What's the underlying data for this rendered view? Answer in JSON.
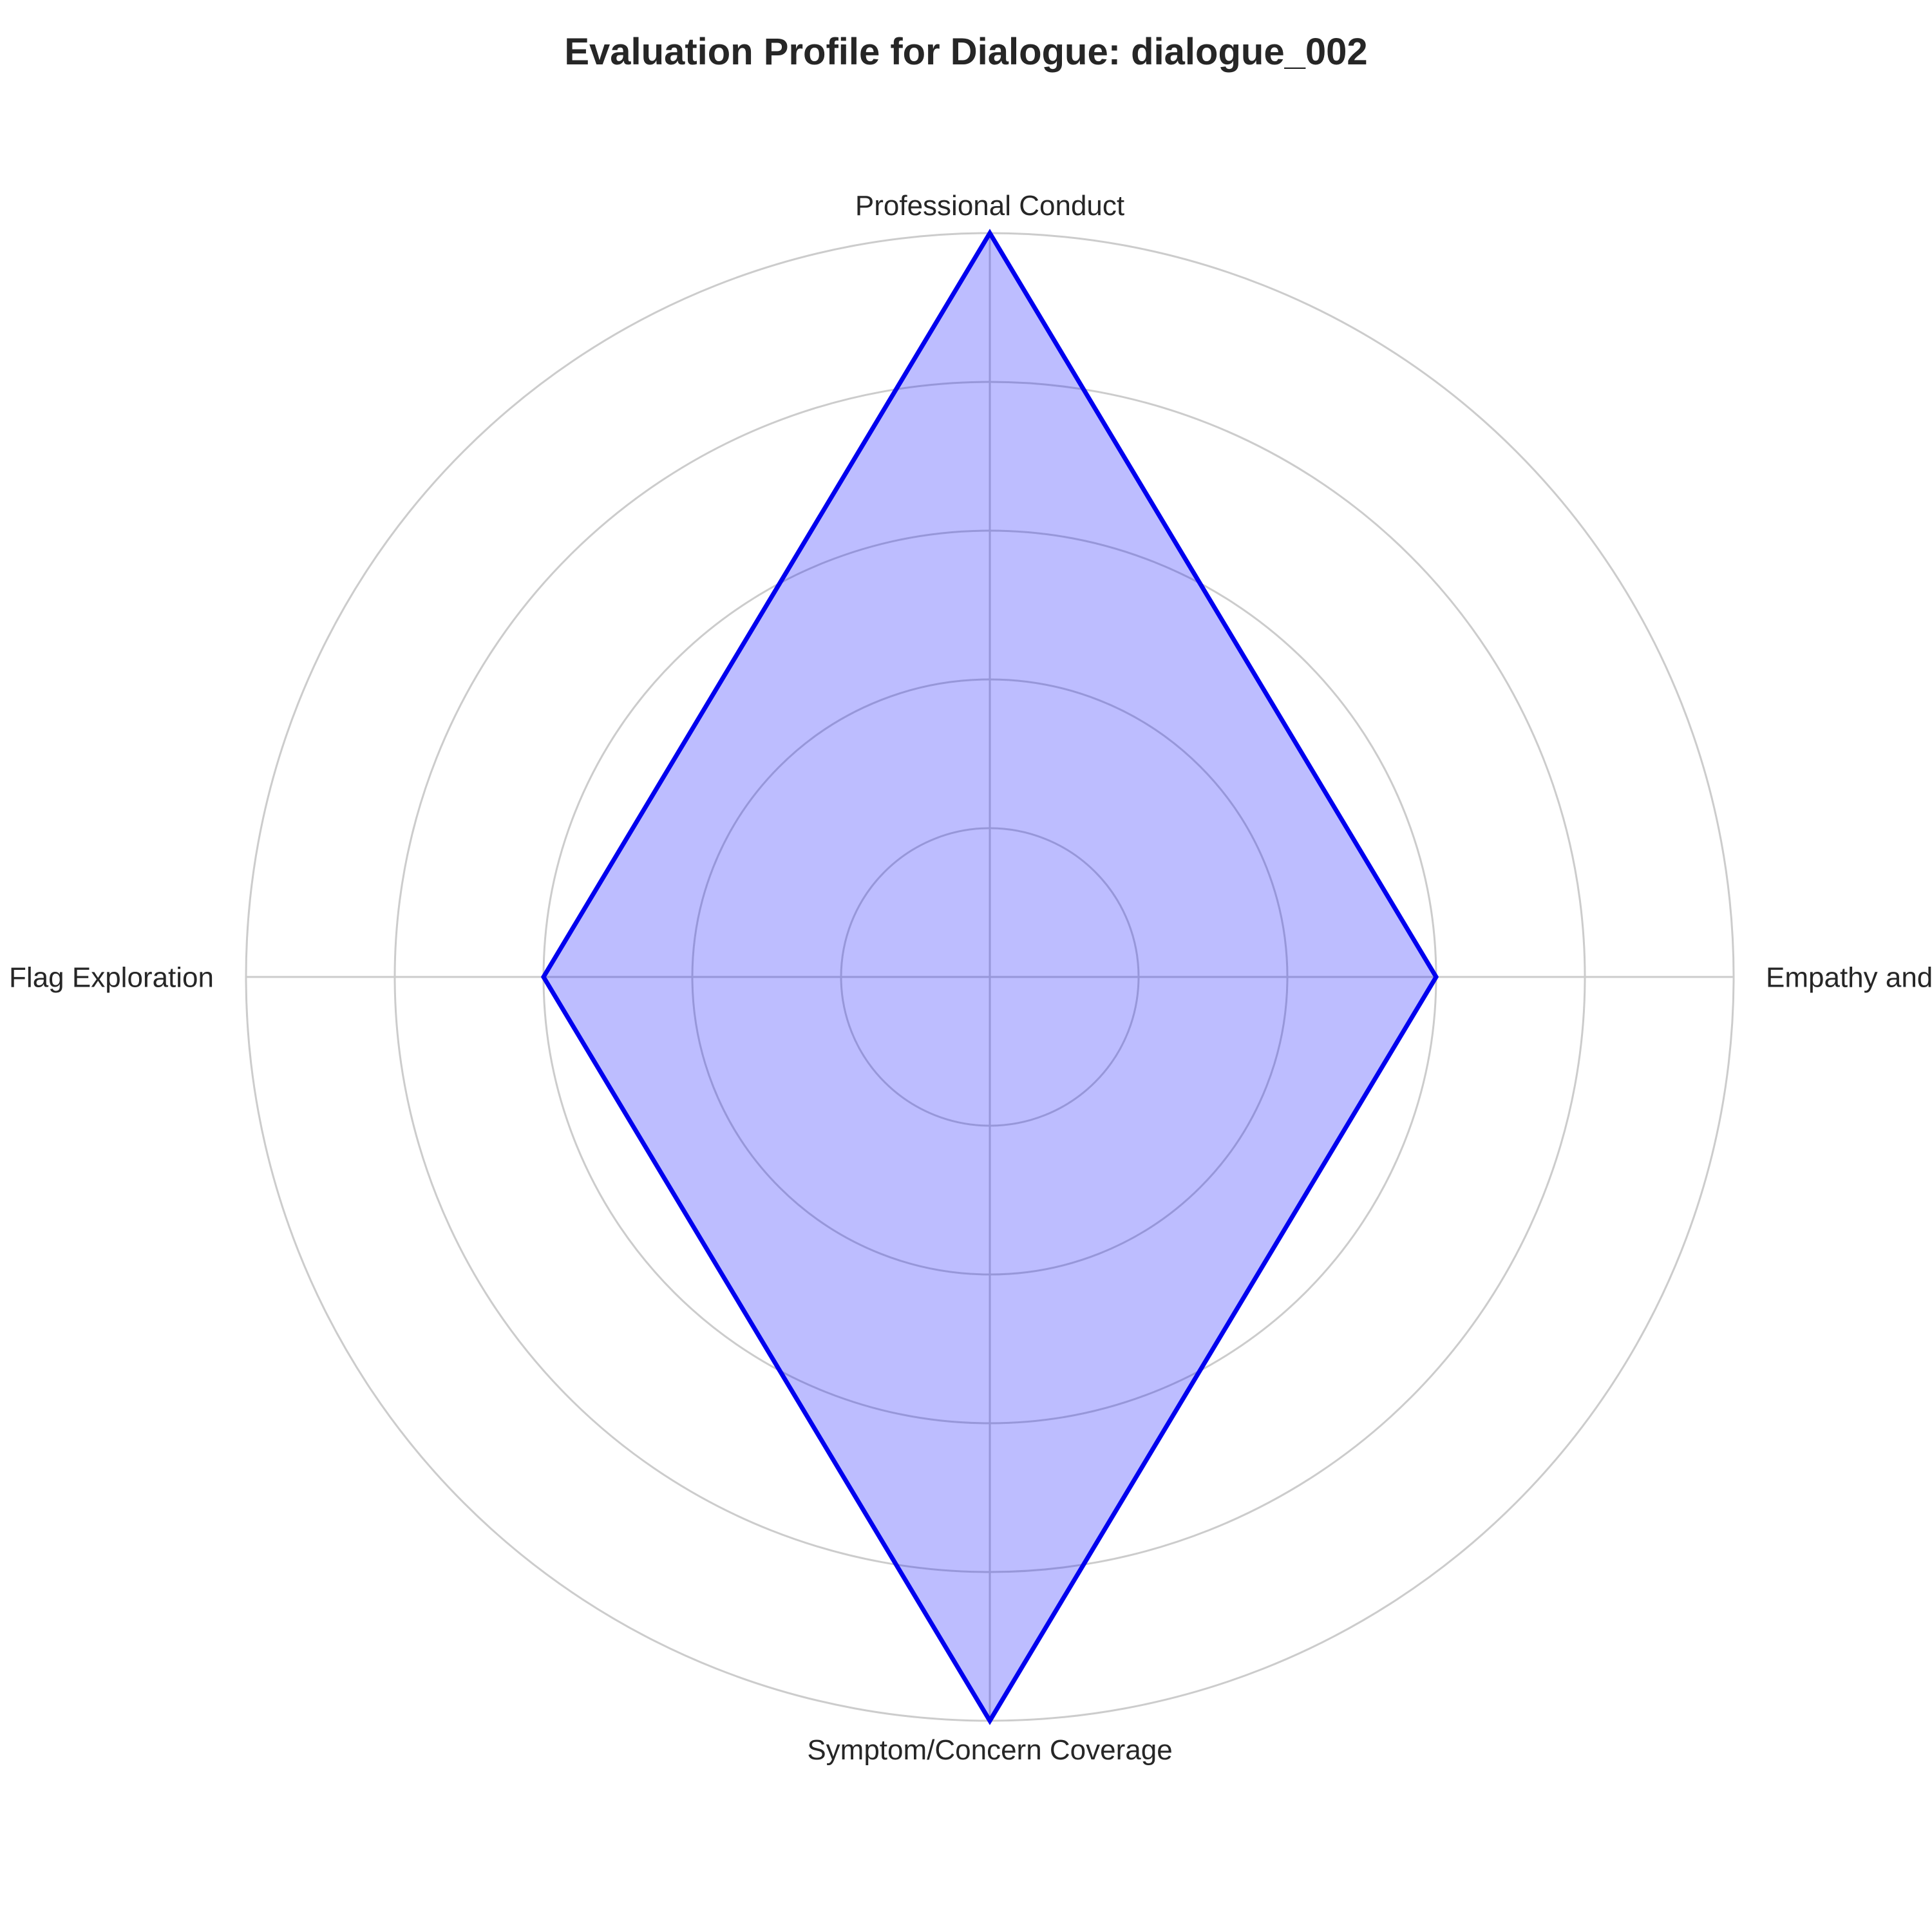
{
  "chart_data": {
    "type": "radar",
    "title": "Evaluation Profile for Dialogue: dialogue_002",
    "categories": [
      "Professional Conduct",
      "Empathy and Active Listening",
      "Symptom/Concern Coverage",
      "Risk Factor/Red Flag Exploration"
    ],
    "series": [
      {
        "values": [
          5,
          3,
          5,
          3
        ]
      }
    ],
    "rlim": [
      0,
      5
    ],
    "rgrid": [
      1,
      2,
      3,
      4,
      5
    ],
    "grid": true,
    "radial_tick_labels_shown": false,
    "colors": {
      "line": "#0000ee",
      "fill": "#bcbcff",
      "grid": "#cccccc"
    }
  }
}
